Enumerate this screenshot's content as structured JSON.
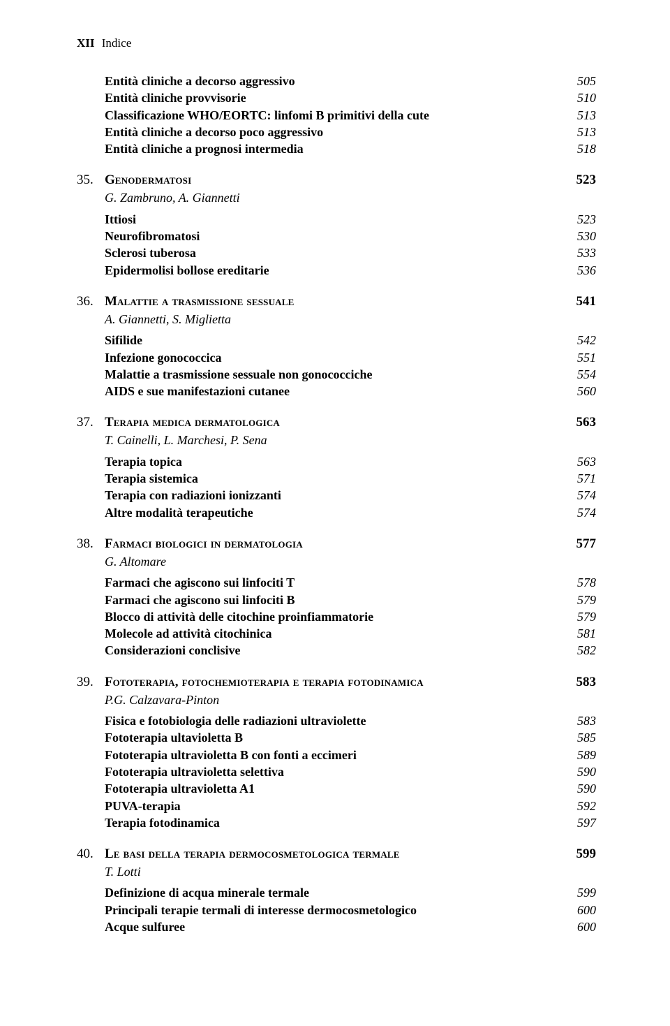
{
  "header": {
    "page_num": "XII",
    "label": "Indice"
  },
  "intro_subs": [
    {
      "label": "Entità cliniche a decorso aggressivo",
      "page": "505"
    },
    {
      "label": "Entità cliniche provvisorie",
      "page": "510"
    },
    {
      "label": "Classificazione WHO/EORTC: linfomi B primitivi della cute",
      "page": "513"
    },
    {
      "label": "Entità cliniche a decorso poco aggressivo",
      "page": "513"
    },
    {
      "label": "Entità cliniche a prognosi intermedia",
      "page": "518"
    }
  ],
  "chapters": [
    {
      "num": "35.",
      "title_first": "G",
      "title_rest": "enodermatosi",
      "page": "523",
      "authors": "G. Zambruno, A. Giannetti",
      "subs": [
        {
          "label": "Ittiosi",
          "page": "523"
        },
        {
          "label": "Neurofibromatosi",
          "page": "530"
        },
        {
          "label": "Sclerosi tuberosa",
          "page": "533"
        },
        {
          "label": "Epidermolisi bollose ereditarie",
          "page": "536"
        }
      ]
    },
    {
      "num": "36.",
      "title_first": "M",
      "title_rest": "alattie a trasmissione sessuale",
      "page": "541",
      "authors": "A. Giannetti, S. Miglietta",
      "subs": [
        {
          "label": "Sifilide",
          "page": "542"
        },
        {
          "label": "Infezione gonococcica",
          "page": "551"
        },
        {
          "label": "Malattie a trasmissione sessuale non gonococciche",
          "page": "554"
        },
        {
          "label": "AIDS e sue manifestazioni cutanee",
          "page": "560"
        }
      ]
    },
    {
      "num": "37.",
      "title_first": "T",
      "title_rest": "erapia medica dermatologica",
      "page": "563",
      "authors": "T. Cainelli, L. Marchesi, P. Sena",
      "subs": [
        {
          "label": "Terapia topica",
          "page": "563"
        },
        {
          "label": "Terapia sistemica",
          "page": "571"
        },
        {
          "label": "Terapia con radiazioni ionizzanti",
          "page": "574"
        },
        {
          "label": "Altre modalità terapeutiche",
          "page": "574"
        }
      ]
    },
    {
      "num": "38.",
      "title_first": "F",
      "title_rest": "armaci biologici in dermatologia",
      "page": "577",
      "authors": "G. Altomare",
      "subs": [
        {
          "label": "Farmaci che agiscono sui linfociti T",
          "page": "578"
        },
        {
          "label": "Farmaci che agiscono sui linfociti B",
          "page": "579"
        },
        {
          "label": "Blocco di attività delle citochine proinfiammatorie",
          "page": "579"
        },
        {
          "label": "Molecole ad attività citochinica",
          "page": "581"
        },
        {
          "label": "Considerazioni conclisive",
          "page": "582"
        }
      ]
    },
    {
      "num": "39.",
      "title_first": "F",
      "title_rest": "ototerapia, fotochemioterapia e terapia fotodinamica",
      "page": "583",
      "authors": "P.G. Calzavara-Pinton",
      "subs": [
        {
          "label": "Fisica e fotobiologia delle radiazioni ultraviolette",
          "page": "583"
        },
        {
          "label": "Fototerapia ultavioletta B",
          "page": "585"
        },
        {
          "label": "Fototerapia ultravioletta B con fonti a eccimeri",
          "page": "589"
        },
        {
          "label": "Fototerapia ultravioletta selettiva",
          "page": "590"
        },
        {
          "label": "Fototerapia ultravioletta A1",
          "page": "590"
        },
        {
          "label": "PUVA-terapia",
          "page": "592"
        },
        {
          "label": "Terapia fotodinamica",
          "page": "597"
        }
      ]
    },
    {
      "num": "40.",
      "title_first": "L",
      "title_rest": "e basi della terapia dermocosmetologica termale",
      "page": "599",
      "authors": "T. Lotti",
      "subs": [
        {
          "label": "Definizione di acqua minerale termale",
          "page": "599"
        },
        {
          "label": "Principali terapie termali di interesse dermocosmetologico",
          "page": "600"
        },
        {
          "label": "Acque sulfuree",
          "page": "600"
        }
      ]
    }
  ]
}
